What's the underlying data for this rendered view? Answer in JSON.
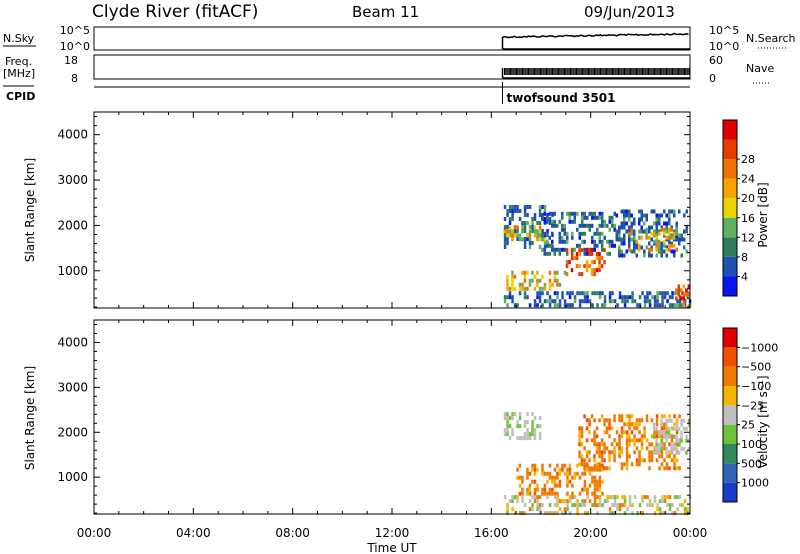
{
  "header": {
    "station": "Clyde River (fitACF)",
    "beam": "Beam 11",
    "date": "09/Jun/2013"
  },
  "status_panels": {
    "nsky_label": "N.Sky",
    "nsky_ticks": [
      "10^5",
      "10^0"
    ],
    "nsearch_ticks": [
      "10^5",
      "10^0"
    ],
    "nsearch_label": "N.Search",
    "freq_label": "Freq.",
    "freq_unit": "[MHz]",
    "freq_ticks": [
      "18",
      "8"
    ],
    "nave_ticks": [
      "60",
      "0"
    ],
    "nave_label": "Nave",
    "cpid_label": "CPID",
    "cpid_name": "twofsound 3501",
    "data_start_hour": 16.45,
    "data_end_hour": 24.0
  },
  "chart_data": [
    {
      "type": "heatmap",
      "title": "",
      "quantity": "Power",
      "xlabel": "",
      "ylabel": "Slant Range [km]",
      "xlim": [
        0,
        24
      ],
      "ylim": [
        180,
        4500
      ],
      "x_ticks_hours": [
        0,
        4,
        8,
        12,
        16,
        20,
        24
      ],
      "y_ticks": [
        1000,
        2000,
        3000,
        4000
      ],
      "y_tick_labels": [
        "1000",
        "2000",
        "3000",
        "4000"
      ],
      "colorbar": {
        "label": "Power [dB]",
        "labels": [
          "4",
          "8",
          "12",
          "16",
          "20",
          "24",
          "28"
        ],
        "colors": [
          "#0a14f0",
          "#1e4fb4",
          "#2e7d5a",
          "#5fb060",
          "#e8d200",
          "#f5a500",
          "#f07000",
          "#e63c00",
          "#e00000"
        ]
      },
      "echo_regions_km": [
        {
          "x": [
            16.5,
            18.5
          ],
          "y": [
            1500,
            2450
          ],
          "level": "low"
        },
        {
          "x": [
            16.5,
            18.3
          ],
          "y": [
            1650,
            2000
          ],
          "level": "mid"
        },
        {
          "x": [
            18.0,
            21.0
          ],
          "y": [
            1350,
            2300
          ],
          "level": "low"
        },
        {
          "x": [
            19.0,
            20.6
          ],
          "y": [
            900,
            1500
          ],
          "level": "high"
        },
        {
          "x": [
            21.0,
            23.9
          ],
          "y": [
            1300,
            2350
          ],
          "level": "low"
        },
        {
          "x": [
            21.5,
            23.5
          ],
          "y": [
            1450,
            1950
          ],
          "level": "mid"
        },
        {
          "x": [
            16.6,
            19.0
          ],
          "y": [
            600,
            1000
          ],
          "level": "mid"
        },
        {
          "x": [
            16.5,
            24.0
          ],
          "y": [
            200,
            550
          ],
          "level": "low"
        },
        {
          "x": [
            23.4,
            24.0
          ],
          "y": [
            200,
            700
          ],
          "level": "high"
        }
      ]
    },
    {
      "type": "heatmap",
      "title": "",
      "quantity": "Velocity",
      "xlabel": "Time UT",
      "ylabel": "Slant Range [km]",
      "xlim": [
        0,
        24
      ],
      "ylim": [
        180,
        4500
      ],
      "x_ticks_hours": [
        0,
        4,
        8,
        12,
        16,
        20,
        24
      ],
      "x_tick_labels": [
        "00:00",
        "04:00",
        "08:00",
        "12:00",
        "16:00",
        "20:00",
        "00:00"
      ],
      "y_ticks": [
        1000,
        2000,
        3000,
        4000
      ],
      "y_tick_labels": [
        "1000",
        "2000",
        "3000",
        "4000"
      ],
      "colorbar": {
        "label": "Velocity [m s⁻¹]",
        "labels": [
          "1000",
          "500",
          "100",
          "25",
          "−25",
          "−100",
          "−500",
          "−1000"
        ],
        "colors": [
          "#1a3cc8",
          "#2e64b4",
          "#2e8a5a",
          "#6cc23c",
          "#bebebe",
          "#f5b400",
          "#f07800",
          "#f05000",
          "#e00000"
        ]
      },
      "echo_regions_km": [
        {
          "x": [
            16.5,
            18.0
          ],
          "y": [
            1900,
            2450
          ],
          "level": "ground"
        },
        {
          "x": [
            17.0,
            20.5
          ],
          "y": [
            600,
            1300
          ],
          "level": "away"
        },
        {
          "x": [
            19.5,
            23.6
          ],
          "y": [
            1200,
            2400
          ],
          "level": "away"
        },
        {
          "x": [
            16.5,
            24.0
          ],
          "y": [
            200,
            600
          ],
          "level": "mixed"
        },
        {
          "x": [
            22.5,
            24.0
          ],
          "y": [
            1500,
            2300
          ],
          "level": "ground"
        }
      ]
    }
  ]
}
